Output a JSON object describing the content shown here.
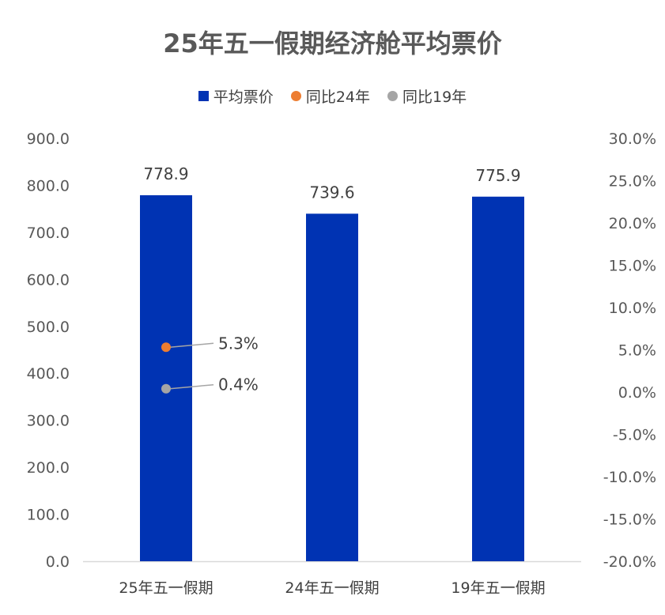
{
  "chart_data": {
    "type": "bar",
    "title": "25年五一假期经济舱平均票价",
    "categories": [
      "25年五一假期",
      "24年五一假期",
      "19年五一假期"
    ],
    "series": [
      {
        "name": "平均票价",
        "kind": "bar",
        "axis": "left",
        "values": [
          778.9,
          739.6,
          775.9
        ],
        "labels": [
          "778.9",
          "739.6",
          "775.9"
        ]
      },
      {
        "name": "同比24年",
        "kind": "point",
        "axis": "right",
        "values": [
          5.3,
          null,
          null
        ],
        "labels": [
          "5.3%",
          "",
          ""
        ]
      },
      {
        "name": "同比19年",
        "kind": "point",
        "axis": "right",
        "values": [
          0.4,
          null,
          null
        ],
        "labels": [
          "0.4%",
          "",
          ""
        ]
      }
    ],
    "y_left": {
      "min": 0,
      "max": 900,
      "step": 100,
      "ticks": [
        "0.0",
        "100.0",
        "200.0",
        "300.0",
        "400.0",
        "500.0",
        "600.0",
        "700.0",
        "800.0",
        "900.0"
      ]
    },
    "y_right": {
      "min": -20,
      "max": 30,
      "step": 5,
      "ticks": [
        "-20.0%",
        "-15.0%",
        "-10.0%",
        "-5.0%",
        "0.0%",
        "5.0%",
        "10.0%",
        "15.0%",
        "20.0%",
        "25.0%",
        "30.0%"
      ]
    },
    "legend_position": "top",
    "grid": false,
    "colors": {
      "bar": "#0033b3",
      "yoy24": "#ed7d31",
      "yoy19": "#a5a5a5",
      "leader": "#a5a5a5",
      "axis": "#d9d9d9"
    }
  }
}
